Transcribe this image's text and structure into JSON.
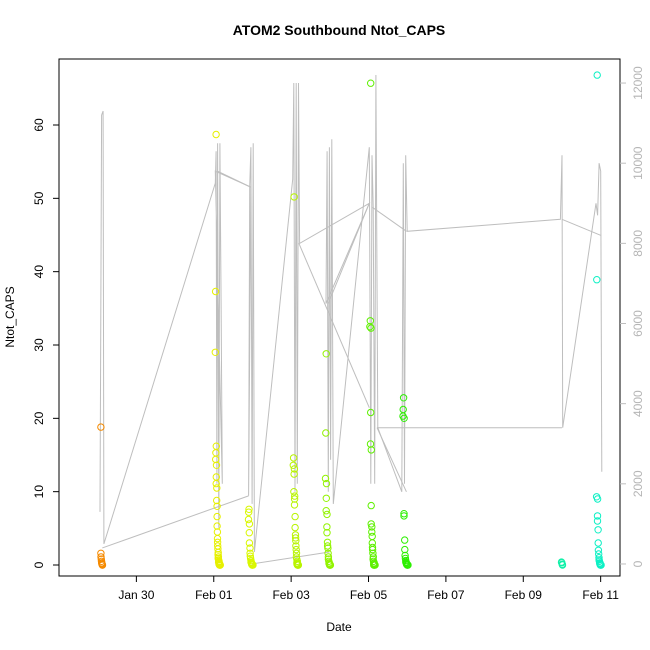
{
  "chart_data": {
    "type": "scatter",
    "title": "ATOM2 Southbound Ntot_CAPS",
    "xlabel": "Date",
    "ylabel": "Ntot_CAPS",
    "x_ticks": [
      "Jan 30",
      "Feb 01",
      "Feb 03",
      "Feb 05",
      "Feb 07",
      "Feb 09",
      "Feb 11"
    ],
    "x_tick_days": [
      30,
      32,
      34,
      36,
      38,
      40,
      42
    ],
    "xlim_days": [
      28.0,
      42.5
    ],
    "ylim": [
      -1.5,
      69
    ],
    "y_ticks": [
      0,
      10,
      20,
      30,
      40,
      50,
      60
    ],
    "y2_ticks": [
      0,
      2000,
      4000,
      6000,
      8000,
      10000,
      12000
    ],
    "y2lim": [
      -300,
      12600
    ],
    "y2_color": "#bebebe",
    "grid": false,
    "colors": {
      "start": "#f07800",
      "mid": "#e8f800",
      "end": "#00f0c0"
    },
    "clusters": [
      {
        "day": 29.1,
        "width": 0.08,
        "color": "#f58a00",
        "values": [
          18.8,
          1.6,
          1.1,
          0.8,
          0.5,
          0.3,
          0.2,
          0.1,
          0.0,
          0.0
        ]
      },
      {
        "day": 32.1,
        "width": 0.2,
        "color": "#e6f000",
        "values": [
          58.7,
          37.3,
          29.0,
          16.2,
          15.3,
          14.4,
          13.6,
          12.0,
          11.1,
          10.5,
          8.8,
          8.0,
          6.6,
          5.3,
          4.5,
          3.6,
          3.1,
          2.6,
          2.2,
          1.7,
          1.4,
          1.1,
          0.9,
          0.7,
          0.5,
          0.4,
          0.3,
          0.2,
          0.1,
          0.0,
          0.0,
          0.0,
          0.0
        ]
      },
      {
        "day": 32.95,
        "width": 0.2,
        "color": "#d9f700",
        "values": [
          7.6,
          7.2,
          6.2,
          5.6,
          4.4,
          3.0,
          2.3,
          1.6,
          1.2,
          0.9,
          0.6,
          0.4,
          0.3,
          0.2,
          0.1,
          0.0,
          0.0,
          0.0
        ]
      },
      {
        "day": 34.12,
        "width": 0.22,
        "color": "#b8f400",
        "values": [
          50.2,
          14.6,
          13.6,
          13.1,
          12.4,
          10.0,
          9.4,
          9.0,
          8.2,
          6.6,
          5.1,
          4.1,
          3.7,
          3.3,
          2.6,
          2.1,
          1.6,
          1.1,
          0.8,
          0.5,
          0.3,
          0.2,
          0.1,
          0.0,
          0.0,
          0.0,
          0.0
        ]
      },
      {
        "day": 34.95,
        "width": 0.22,
        "color": "#92f300",
        "values": [
          28.8,
          18.0,
          11.8,
          11.1,
          9.1,
          7.4,
          6.9,
          5.2,
          4.4,
          3.1,
          2.6,
          2.3,
          1.6,
          1.1,
          0.8,
          0.5,
          0.3,
          0.2,
          0.1,
          0.0,
          0.0,
          0.0,
          0.0
        ]
      },
      {
        "day": 36.1,
        "width": 0.22,
        "color": "#5ef000",
        "values": [
          65.7,
          33.3,
          32.5,
          32.3,
          20.8,
          16.5,
          15.7,
          8.1,
          5.6,
          5.2,
          4.5,
          3.9,
          3.0,
          2.4,
          2.1,
          1.6,
          1.1,
          0.8,
          0.5,
          0.3,
          0.2,
          0.1,
          0.0,
          0.0,
          0.0,
          0.0
        ]
      },
      {
        "day": 36.95,
        "width": 0.22,
        "color": "#2cef00",
        "values": [
          22.8,
          21.2,
          20.3,
          20.0,
          7.0,
          6.7,
          3.4,
          2.1,
          1.3,
          0.9,
          0.6,
          0.4,
          0.3,
          0.2,
          0.1,
          0.0,
          0.0,
          0.0
        ]
      },
      {
        "day": 41.0,
        "width": 0.06,
        "color": "#10f0a8",
        "values": [
          0.4,
          0.3,
          0.1,
          0.0
        ]
      },
      {
        "day": 41.95,
        "width": 0.2,
        "color": "#0cf0c4",
        "values": [
          66.8,
          38.9,
          9.3,
          9.0,
          6.7,
          6.0,
          4.8,
          3.0,
          2.0,
          1.5,
          1.0,
          0.7,
          0.5,
          0.3,
          0.2,
          0.1,
          0.0,
          0.0,
          0.0
        ]
      }
    ],
    "y2_trace": [
      [
        29.06,
        1300
      ],
      [
        29.1,
        11200
      ],
      [
        29.14,
        11300
      ],
      [
        29.16,
        500
      ],
      [
        32.04,
        9500
      ],
      [
        32.06,
        10300
      ],
      [
        32.08,
        2000
      ],
      [
        32.1,
        10500
      ],
      [
        32.13,
        900
      ],
      [
        32.16,
        10500
      ],
      [
        32.19,
        6500
      ],
      [
        32.22,
        2000
      ],
      [
        32.04,
        9800
      ],
      [
        32.96,
        9400
      ],
      [
        32.9,
        1700
      ],
      [
        32.93,
        9400
      ],
      [
        32.96,
        10400
      ],
      [
        32.99,
        1500
      ],
      [
        33.02,
        10500
      ],
      [
        33.05,
        300
      ],
      [
        34.04,
        9600
      ],
      [
        34.07,
        12000
      ],
      [
        34.1,
        1800
      ],
      [
        34.13,
        12000
      ],
      [
        34.16,
        2000
      ],
      [
        34.19,
        12000
      ],
      [
        34.22,
        8000
      ],
      [
        36.02,
        9000
      ],
      [
        34.9,
        6500
      ],
      [
        34.93,
        10300
      ],
      [
        34.96,
        1800
      ],
      [
        34.99,
        10400
      ],
      [
        35.02,
        2600
      ],
      [
        35.05,
        10600
      ],
      [
        35.09,
        1500
      ],
      [
        36.02,
        10400
      ],
      [
        36.06,
        2000
      ],
      [
        36.09,
        10200
      ],
      [
        36.12,
        8900
      ],
      [
        36.16,
        2000
      ],
      [
        36.19,
        12200
      ],
      [
        36.24,
        3400
      ],
      [
        36.86,
        1800
      ],
      [
        36.9,
        10000
      ],
      [
        36.93,
        2000
      ],
      [
        36.96,
        10200
      ],
      [
        37.0,
        8300
      ],
      [
        40.96,
        8600
      ],
      [
        41.0,
        10200
      ],
      [
        41.02,
        3400
      ],
      [
        41.88,
        9000
      ],
      [
        41.92,
        8700
      ],
      [
        41.96,
        10000
      ],
      [
        42.0,
        9800
      ],
      [
        42.03,
        2300
      ]
    ],
    "y2_connectors": [
      [
        [
          29.12,
          400
        ],
        [
          32.9,
          1700
        ]
      ],
      [
        [
          32.1,
          9800
        ],
        [
          32.96,
          9400
        ]
      ],
      [
        [
          34.2,
          8000
        ],
        [
          36.02,
          3900
        ]
      ],
      [
        [
          34.96,
          6500
        ],
        [
          36.02,
          9000
        ]
      ],
      [
        [
          36.1,
          8900
        ],
        [
          36.98,
          8300
        ]
      ],
      [
        [
          36.22,
          3400
        ],
        [
          41.0,
          3400
        ]
      ],
      [
        [
          36.98,
          1800
        ],
        [
          36.22,
          3400
        ]
      ],
      [
        [
          41.0,
          8600
        ],
        [
          42.0,
          8200
        ]
      ],
      [
        [
          32.98,
          0
        ],
        [
          34.99,
          300
        ]
      ]
    ]
  }
}
